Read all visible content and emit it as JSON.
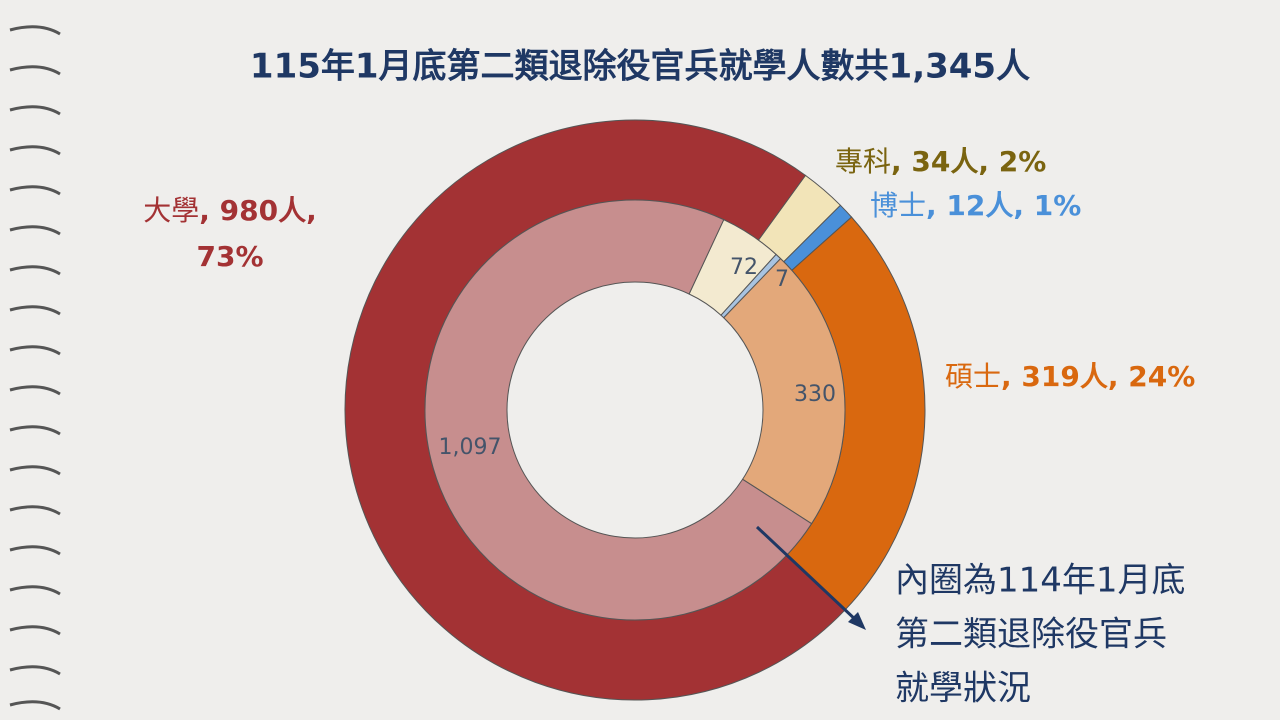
{
  "chart_data": {
    "type": "nested-donut",
    "title": "115年1月底第二類退除役官兵就學人數共1,345人",
    "categories": [
      "專科",
      "博士",
      "碩士",
      "大學"
    ],
    "separator": ", ",
    "series": [
      {
        "name": "outer",
        "colors": [
          "#f2e4b8",
          "#4a90d9",
          "#d9680f",
          "#a33234"
        ],
        "values": [
          34,
          12,
          319,
          980
        ],
        "value_labels": [
          "34人",
          "12人",
          "319人",
          "980人"
        ],
        "percents": [
          2,
          1,
          24,
          73
        ],
        "percent_labels": [
          "2%",
          "1%",
          "24%",
          "73%"
        ]
      },
      {
        "name": "inner",
        "colors": [
          "#f3ead0",
          "#a8c3e0",
          "#e3a87a",
          "#c78e8e"
        ],
        "values": [
          72,
          7,
          330,
          1097
        ],
        "value_labels": [
          "72",
          "7",
          "330",
          "1,097"
        ]
      }
    ],
    "annotation": [
      "內圈為114年1月底",
      "第二類退除役官兵",
      "就學狀況"
    ]
  }
}
